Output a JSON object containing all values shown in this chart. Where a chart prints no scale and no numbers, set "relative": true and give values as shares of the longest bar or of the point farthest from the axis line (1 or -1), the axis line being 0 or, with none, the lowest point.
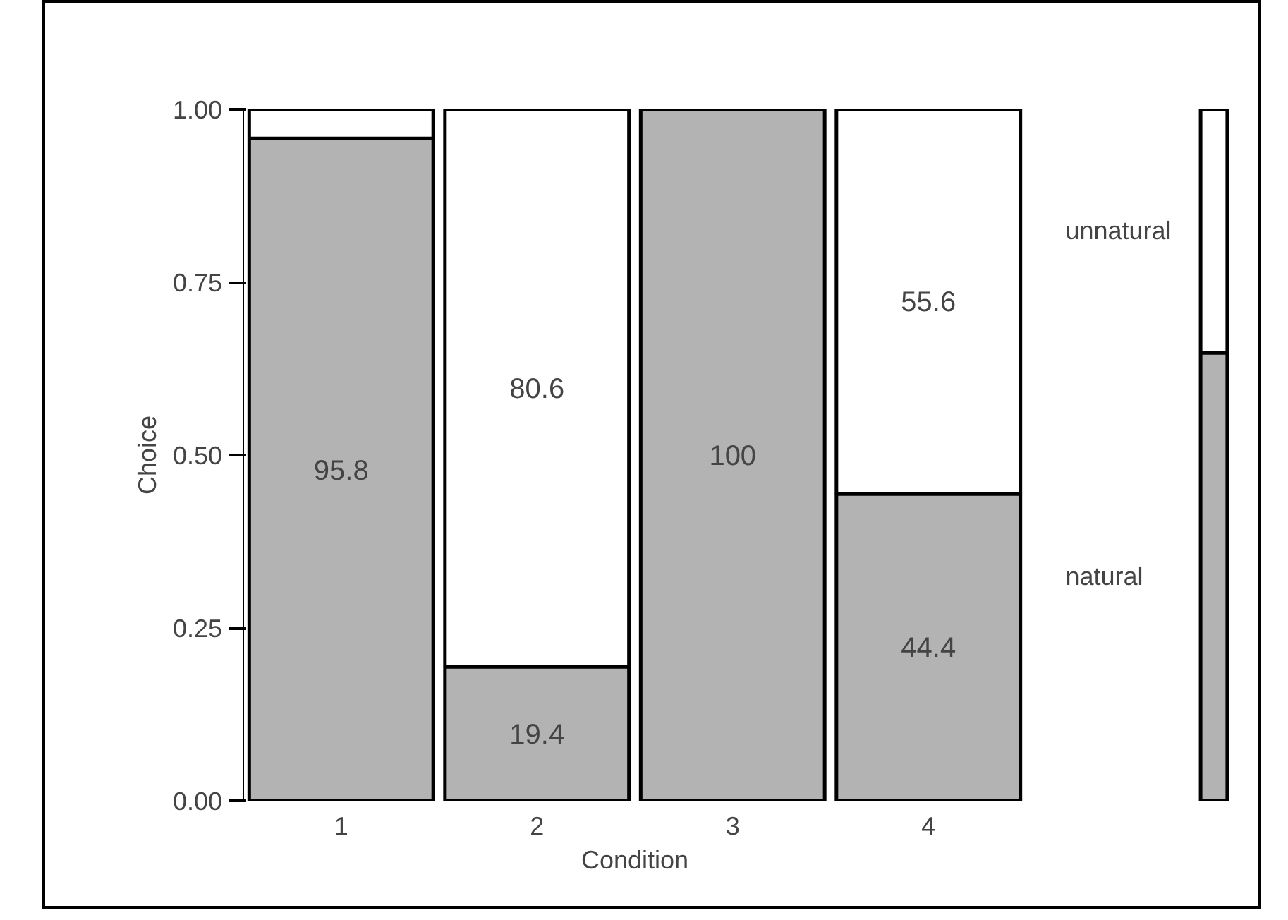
{
  "chart_data": [
    {
      "type": "bar",
      "stacked": true,
      "xlabel": "Condition",
      "ylabel": "Choice",
      "categories": [
        "1",
        "2",
        "3",
        "4"
      ],
      "ylim": [
        0,
        1
      ],
      "yticks": [
        {
          "value": 0,
          "label": "0.00"
        },
        {
          "value": 0.25,
          "label": "0.25"
        },
        {
          "value": 0.5,
          "label": "0.50"
        },
        {
          "value": 0.75,
          "label": "0.75"
        },
        {
          "value": 1,
          "label": "1.00"
        }
      ],
      "grid": false,
      "legend": false,
      "series": [
        {
          "color": "#b3b3b3",
          "values": [
            0.958,
            0.194,
            1.0,
            0.444
          ]
        },
        {
          "color": "#ffffff",
          "values": [
            0.042,
            0.806,
            0.0,
            0.556
          ]
        }
      ],
      "annotations": [
        "95.8",
        "19.4",
        "100",
        "44.4",
        "80.6",
        "55.6"
      ]
    },
    {
      "type": "bar",
      "stacked": true,
      "relative": true,
      "categories": [
        null
      ],
      "grid": false,
      "legend": false,
      "series": [
        {
          "name": "natural",
          "color": "#b3b3b3",
          "values": [
            0.648
          ]
        },
        {
          "name": "unnatural",
          "color": "#ffffff",
          "values": [
            0.352
          ]
        }
      ]
    }
  ]
}
